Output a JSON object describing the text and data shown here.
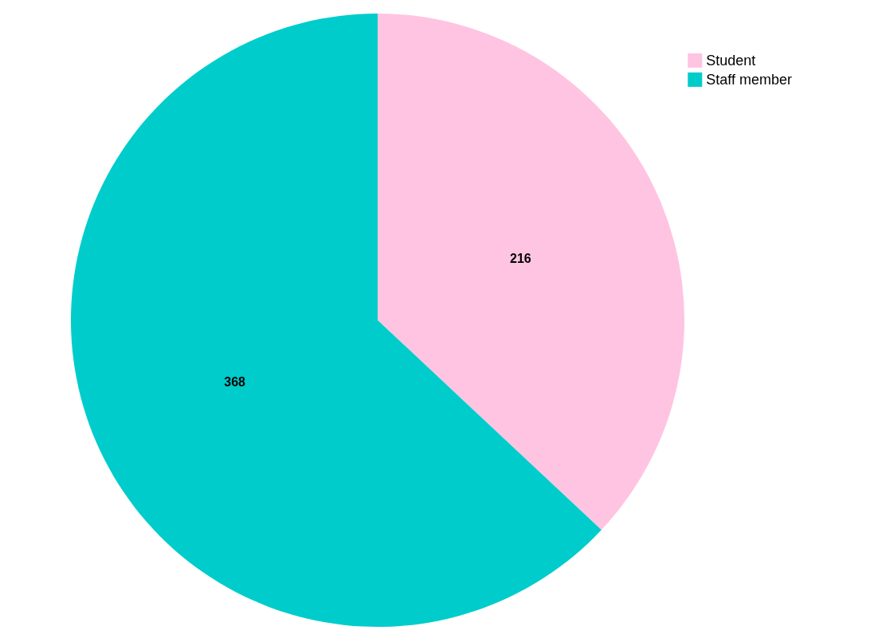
{
  "chart_data": {
    "type": "pie",
    "categories": [
      "Student",
      "Staff member"
    ],
    "values": [
      216,
      368
    ],
    "colors": [
      "#ffc4e1",
      "#00cccc"
    ],
    "data_labels": true,
    "legend": "top right"
  }
}
